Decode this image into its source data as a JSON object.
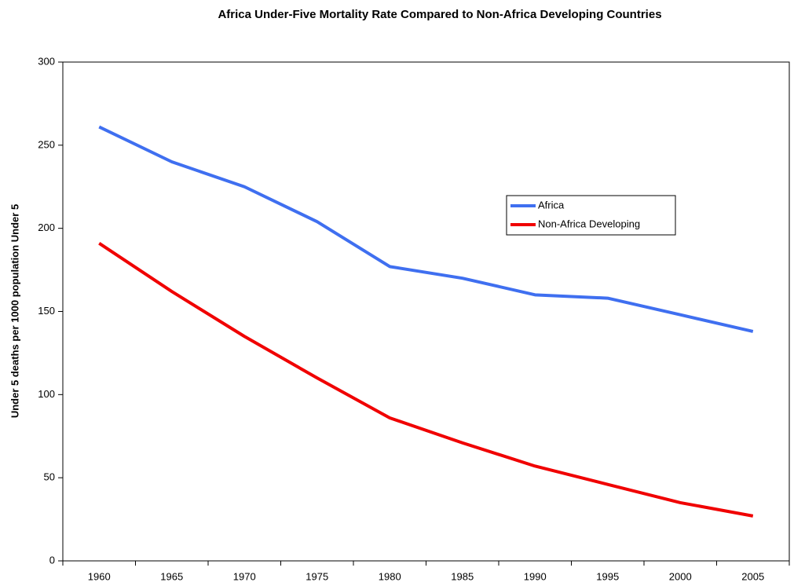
{
  "chart_data": {
    "type": "line",
    "title": "Africa Under-Five Mortality Rate Compared to Non-Africa Developing Countries",
    "y_label": "Under 5 deaths per 1000 population Under 5",
    "categories": [
      "1960",
      "1965",
      "1970",
      "1975",
      "1980",
      "1985",
      "1990",
      "1995",
      "2000",
      "2005"
    ],
    "series": [
      {
        "name": "Africa",
        "color": "#3f6ff0",
        "values": [
          261,
          240,
          225,
          204,
          177,
          170,
          160,
          158,
          148,
          138
        ]
      },
      {
        "name": "Non-Africa Developing",
        "color": "#f00000",
        "values": [
          191,
          162,
          135,
          110,
          86,
          71,
          57,
          46,
          35,
          27
        ]
      }
    ],
    "ylim": [
      0,
      300
    ],
    "yticks": [
      0,
      50,
      100,
      150,
      200,
      250,
      300
    ],
    "grid": false,
    "legend": "right"
  }
}
